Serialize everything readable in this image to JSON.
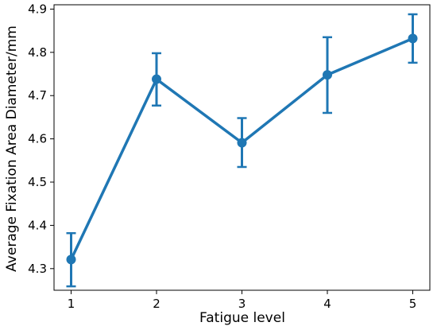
{
  "chart_data": {
    "type": "line",
    "title": "",
    "xlabel": "Fatigue level",
    "ylabel": "Average Fixation Area Diameter/mm",
    "x": [
      1,
      2,
      3,
      4,
      5
    ],
    "xticks": [
      "1",
      "2",
      "3",
      "4",
      "5"
    ],
    "yticks": [
      "4.3",
      "4.4",
      "4.5",
      "4.6",
      "4.7",
      "4.8",
      "4.9"
    ],
    "xlim": [
      0.8,
      5.2
    ],
    "ylim": [
      4.25,
      4.91
    ],
    "series": [
      {
        "values": [
          4.321,
          4.738,
          4.591,
          4.748,
          4.832
        ],
        "error_low": [
          4.259,
          4.677,
          4.535,
          4.66,
          4.776
        ],
        "error_high": [
          4.382,
          4.798,
          4.648,
          4.835,
          4.888
        ]
      }
    ],
    "grid": false,
    "legend": "none",
    "colors": {
      "series": "#1f77b4",
      "axis": "#000000"
    }
  }
}
